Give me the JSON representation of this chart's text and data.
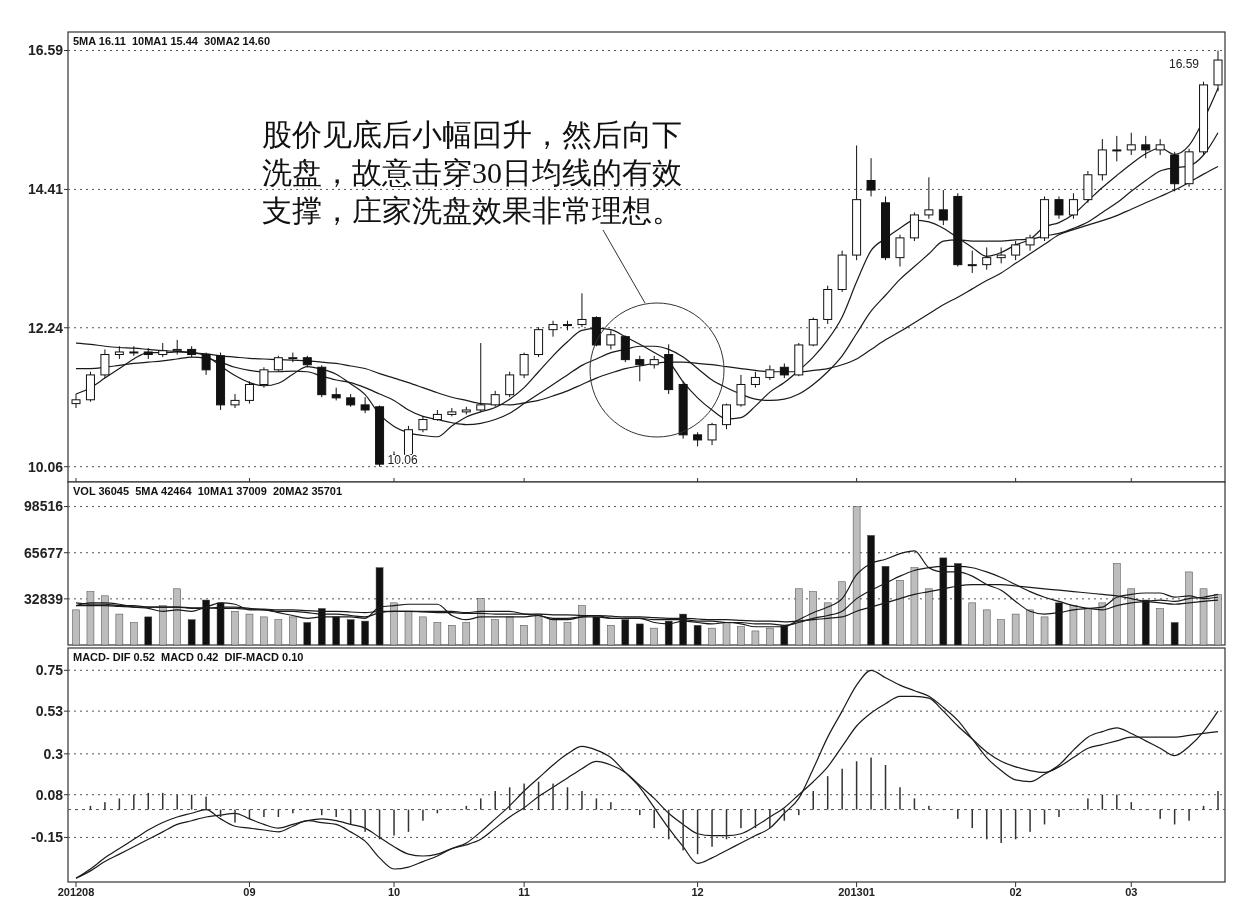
{
  "chart_data": [
    {
      "type": "candlestick",
      "title": "5MA 16.11  10MA1 15.44  30MA2 14.60",
      "categories": [
        "201208",
        null,
        null,
        null,
        null,
        null,
        null,
        null,
        null,
        null,
        null,
        null,
        "09",
        null,
        null,
        null,
        null,
        null,
        null,
        null,
        null,
        null,
        "10",
        null,
        null,
        null,
        null,
        null,
        null,
        null,
        null,
        "11",
        null,
        null,
        null,
        null,
        null,
        null,
        null,
        null,
        null,
        null,
        null,
        "12",
        null,
        null,
        null,
        null,
        null,
        null,
        null,
        null,
        null,
        null,
        "201301",
        null,
        null,
        null,
        null,
        null,
        null,
        null,
        null,
        null,
        null,
        "02",
        null,
        null,
        null,
        null,
        null,
        null,
        null,
        "03",
        null,
        null,
        null,
        null,
        null,
        null
      ],
      "ohlc": [
        [
          11.05,
          11.2,
          10.98,
          11.11
        ],
        [
          11.11,
          11.55,
          11.08,
          11.5
        ],
        [
          11.5,
          11.9,
          11.45,
          11.82
        ],
        [
          11.82,
          11.95,
          11.75,
          11.86
        ],
        [
          11.86,
          11.95,
          11.8,
          11.86
        ],
        [
          11.86,
          11.92,
          11.75,
          11.82
        ],
        [
          11.82,
          12.0,
          11.78,
          11.88
        ],
        [
          11.88,
          12.05,
          11.82,
          11.9
        ],
        [
          11.9,
          11.95,
          11.78,
          11.82
        ],
        [
          11.82,
          11.85,
          11.5,
          11.58
        ],
        [
          11.8,
          11.85,
          10.95,
          11.03
        ],
        [
          11.03,
          11.2,
          10.98,
          11.1
        ],
        [
          11.1,
          11.4,
          11.05,
          11.35
        ],
        [
          11.35,
          11.62,
          11.3,
          11.58
        ],
        [
          11.58,
          11.8,
          11.55,
          11.77
        ],
        [
          11.77,
          11.85,
          11.7,
          11.77
        ],
        [
          11.77,
          11.8,
          11.62,
          11.66
        ],
        [
          11.62,
          11.65,
          11.15,
          11.19
        ],
        [
          11.19,
          11.3,
          11.1,
          11.14
        ],
        [
          11.14,
          11.2,
          11.0,
          11.03
        ],
        [
          11.03,
          11.15,
          10.9,
          10.95
        ],
        [
          11.0,
          11.02,
          10.06,
          10.1
        ],
        [
          10.1,
          10.3,
          10.08,
          10.25
        ],
        [
          10.25,
          10.7,
          10.2,
          10.64
        ],
        [
          10.64,
          10.85,
          10.6,
          10.8
        ],
        [
          10.8,
          10.95,
          10.78,
          10.88
        ],
        [
          10.88,
          10.98,
          10.85,
          10.92
        ],
        [
          10.92,
          11.0,
          10.88,
          10.95
        ],
        [
          10.95,
          12.0,
          10.92,
          11.03
        ],
        [
          11.03,
          11.25,
          11.0,
          11.19
        ],
        [
          11.19,
          11.55,
          11.15,
          11.5
        ],
        [
          11.5,
          11.85,
          11.45,
          11.82
        ],
        [
          11.82,
          12.25,
          11.78,
          12.21
        ],
        [
          12.21,
          12.35,
          12.1,
          12.29
        ],
        [
          12.29,
          12.35,
          12.2,
          12.29
        ],
        [
          12.29,
          12.78,
          12.25,
          12.37
        ],
        [
          12.4,
          12.42,
          11.95,
          11.97
        ],
        [
          11.97,
          12.2,
          11.9,
          12.13
        ],
        [
          12.1,
          12.12,
          11.7,
          11.74
        ],
        [
          11.74,
          11.8,
          11.4,
          11.66
        ],
        [
          11.66,
          11.8,
          11.6,
          11.74
        ],
        [
          11.82,
          11.98,
          11.2,
          11.27
        ],
        [
          11.35,
          11.4,
          10.5,
          10.56
        ],
        [
          10.56,
          10.6,
          10.38,
          10.48
        ],
        [
          10.48,
          10.75,
          10.4,
          10.72
        ],
        [
          10.72,
          11.05,
          10.65,
          11.03
        ],
        [
          11.03,
          11.5,
          11.0,
          11.35
        ],
        [
          11.35,
          11.55,
          11.3,
          11.46
        ],
        [
          11.46,
          11.65,
          11.42,
          11.58
        ],
        [
          11.62,
          11.68,
          11.45,
          11.5
        ],
        [
          11.5,
          12.0,
          11.48,
          11.97
        ],
        [
          11.97,
          12.4,
          11.95,
          12.37
        ],
        [
          12.37,
          12.9,
          12.3,
          12.84
        ],
        [
          12.84,
          13.45,
          12.8,
          13.38
        ],
        [
          13.38,
          15.1,
          13.3,
          14.25
        ],
        [
          14.55,
          14.9,
          14.3,
          14.4
        ],
        [
          14.2,
          14.3,
          13.3,
          13.34
        ],
        [
          13.34,
          13.7,
          13.2,
          13.65
        ],
        [
          13.65,
          14.05,
          13.6,
          14.01
        ],
        [
          14.01,
          14.6,
          13.95,
          14.09
        ],
        [
          14.09,
          14.4,
          13.85,
          13.93
        ],
        [
          14.3,
          14.35,
          13.2,
          13.23
        ],
        [
          13.23,
          13.45,
          13.1,
          13.23
        ],
        [
          13.23,
          13.5,
          13.15,
          13.34
        ],
        [
          13.34,
          13.5,
          13.25,
          13.38
        ],
        [
          13.38,
          13.6,
          13.3,
          13.54
        ],
        [
          13.54,
          13.7,
          13.45,
          13.65
        ],
        [
          13.65,
          14.3,
          13.6,
          14.25
        ],
        [
          14.25,
          14.3,
          13.95,
          14.01
        ],
        [
          14.01,
          14.35,
          13.95,
          14.25
        ],
        [
          14.25,
          14.7,
          14.2,
          14.64
        ],
        [
          14.64,
          15.2,
          14.55,
          15.03
        ],
        [
          15.03,
          15.25,
          14.85,
          15.03
        ],
        [
          15.03,
          15.3,
          14.95,
          15.11
        ],
        [
          15.11,
          15.25,
          14.9,
          15.03
        ],
        [
          15.03,
          15.2,
          14.95,
          15.11
        ],
        [
          14.95,
          15.0,
          14.38,
          14.5
        ],
        [
          14.5,
          15.05,
          14.45,
          15.0
        ],
        [
          15.0,
          16.1,
          14.95,
          16.05
        ],
        [
          16.05,
          16.59,
          15.95,
          16.44
        ]
      ],
      "series": [
        {
          "type": "line",
          "color": "#1a1a1a",
          "values": [
            11.2,
            11.3,
            11.45,
            11.6,
            11.75,
            11.85,
            11.85,
            11.86,
            11.85,
            11.8,
            11.64,
            11.49,
            11.38,
            11.33,
            11.37,
            11.51,
            11.63,
            11.59,
            11.51,
            11.36,
            11.19,
            10.88,
            10.69,
            10.59,
            10.55,
            10.53,
            10.7,
            10.84,
            10.92,
            10.99,
            11.12,
            11.3,
            11.55,
            11.8,
            12.02,
            12.2,
            12.23,
            12.21,
            12.1,
            11.98,
            11.85,
            11.71,
            11.39,
            11.14,
            10.95,
            10.81,
            10.83,
            11.01,
            11.23,
            11.38,
            11.57,
            11.78,
            12.05,
            12.41,
            12.96,
            13.45,
            13.64,
            13.8,
            13.93,
            13.9,
            13.8,
            13.65,
            13.5,
            13.36,
            13.42,
            13.54,
            13.63,
            13.82,
            13.89,
            14.02,
            14.23,
            14.44,
            14.63,
            14.81,
            14.97,
            15.06,
            14.96,
            15.1,
            15.5,
            16.0
          ]
        },
        {
          "type": "line",
          "color": "#1a1a1a",
          "values": [
            11.6,
            11.6,
            11.62,
            11.65,
            11.68,
            11.7,
            11.72,
            11.75,
            11.78,
            11.76,
            11.7,
            11.62,
            11.57,
            11.55,
            11.55,
            11.56,
            11.55,
            11.48,
            11.42,
            11.38,
            11.3,
            11.2,
            11.1,
            10.95,
            10.85,
            10.8,
            10.75,
            10.72,
            10.74,
            10.8,
            10.9,
            11.05,
            11.2,
            11.35,
            11.5,
            11.65,
            11.75,
            11.85,
            11.9,
            11.95,
            11.95,
            11.9,
            11.78,
            11.6,
            11.42,
            11.3,
            11.2,
            11.12,
            11.1,
            11.12,
            11.2,
            11.35,
            11.55,
            11.8,
            12.15,
            12.5,
            12.75,
            13.0,
            13.2,
            13.4,
            13.6,
            13.62,
            13.6,
            13.6,
            13.6,
            13.62,
            13.63,
            13.68,
            13.72,
            13.8,
            13.9,
            14.05,
            14.2,
            14.38,
            14.55,
            14.7,
            14.75,
            14.78,
            14.95,
            15.3
          ]
        },
        {
          "type": "line",
          "color": "#1a1a1a",
          "values": [
            12.0,
            11.98,
            11.95,
            11.93,
            11.92,
            11.9,
            11.88,
            11.87,
            11.85,
            11.83,
            11.8,
            11.78,
            11.76,
            11.75,
            11.74,
            11.73,
            11.72,
            11.7,
            11.68,
            11.64,
            11.6,
            11.52,
            11.45,
            11.38,
            11.3,
            11.22,
            11.15,
            11.1,
            11.05,
            11.04,
            11.03,
            11.06,
            11.1,
            11.17,
            11.25,
            11.35,
            11.45,
            11.53,
            11.6,
            11.64,
            11.68,
            11.7,
            11.7,
            11.68,
            11.66,
            11.63,
            11.6,
            11.57,
            11.55,
            11.55,
            11.55,
            11.57,
            11.6,
            11.66,
            11.75,
            11.9,
            12.05,
            12.18,
            12.32,
            12.46,
            12.6,
            12.72,
            12.85,
            12.98,
            13.1,
            13.25,
            13.4,
            13.55,
            13.7,
            13.78,
            13.85,
            13.92,
            14.0,
            14.1,
            14.2,
            14.3,
            14.4,
            14.52,
            14.65,
            14.77
          ]
        }
      ],
      "ylim": [
        9.82,
        16.88
      ],
      "yticks": [
        10.06,
        12.24,
        14.41,
        16.59
      ],
      "grid": "y",
      "tick_labels": "y",
      "annotations": [
        "股价见底后小幅回升，然后向下洗盘，故意击穿30日均线的有效支撑，庄家洗盘效果非常理想。",
        "10.06",
        "16.59"
      ]
    },
    {
      "type": "bar",
      "title": "VOL 36045  5MA 42464  10MA1 37009  20MA2 35701",
      "categories": [
        "201208",
        null,
        null,
        null,
        null,
        null,
        null,
        null,
        null,
        null,
        null,
        null,
        "09",
        null,
        null,
        null,
        null,
        null,
        null,
        null,
        null,
        null,
        "10",
        null,
        null,
        null,
        null,
        null,
        null,
        null,
        null,
        "11",
        null,
        null,
        null,
        null,
        null,
        null,
        null,
        null,
        null,
        null,
        null,
        "12",
        null,
        null,
        null,
        null,
        null,
        null,
        null,
        null,
        null,
        null,
        "201301",
        null,
        null,
        null,
        null,
        null,
        null,
        null,
        null,
        null,
        null,
        "02",
        null,
        null,
        null,
        null,
        null,
        null,
        null,
        "03",
        null,
        null,
        null,
        null,
        null,
        null
      ],
      "series": [
        {
          "type": "bar",
          "colors": [
            "#bdbdbd",
            "#bdbdbd",
            "#bdbdbd",
            "#bdbdbd",
            "#bdbdbd",
            "#111111",
            "#bdbdbd",
            "#bdbdbd",
            "#111111",
            "#111111",
            "#111111",
            "#bdbdbd",
            "#bdbdbd",
            "#bdbdbd",
            "#bdbdbd",
            "#bdbdbd",
            "#111111",
            "#111111",
            "#111111",
            "#111111",
            "#111111",
            "#111111",
            "#bdbdbd",
            "#bdbdbd",
            "#bdbdbd",
            "#bdbdbd",
            "#bdbdbd",
            "#bdbdbd",
            "#bdbdbd",
            "#bdbdbd",
            "#bdbdbd",
            "#bdbdbd",
            "#bdbdbd",
            "#bdbdbd",
            "#bdbdbd",
            "#bdbdbd",
            "#111111",
            "#bdbdbd",
            "#111111",
            "#111111",
            "#bdbdbd",
            "#111111",
            "#111111",
            "#111111",
            "#bdbdbd",
            "#bdbdbd",
            "#bdbdbd",
            "#bdbdbd",
            "#bdbdbd",
            "#111111",
            "#bdbdbd",
            "#bdbdbd",
            "#bdbdbd",
            "#bdbdbd",
            "#bdbdbd",
            "#111111",
            "#111111",
            "#bdbdbd",
            "#bdbdbd",
            "#bdbdbd",
            "#111111",
            "#111111",
            "#bdbdbd",
            "#bdbdbd",
            "#bdbdbd",
            "#bdbdbd",
            "#bdbdbd",
            "#bdbdbd",
            "#111111",
            "#bdbdbd",
            "#bdbdbd",
            "#bdbdbd",
            "#bdbdbd",
            "#bdbdbd",
            "#111111",
            "#bdbdbd",
            "#111111",
            "#bdbdbd",
            "#bdbdbd",
            "#bdbdbd"
          ],
          "values": [
            25000,
            38000,
            35000,
            22000,
            16000,
            20000,
            28000,
            40000,
            18000,
            32000,
            30000,
            24000,
            22000,
            20000,
            18000,
            20000,
            16000,
            26000,
            20000,
            18000,
            17000,
            55000,
            30000,
            24000,
            20000,
            16000,
            14000,
            16000,
            33000,
            18000,
            20000,
            14000,
            22000,
            18000,
            16000,
            28000,
            20000,
            14000,
            18000,
            15000,
            12000,
            17000,
            22000,
            14000,
            12000,
            16000,
            13000,
            10000,
            12000,
            14000,
            40000,
            38000,
            30000,
            45000,
            98500,
            78000,
            56000,
            46000,
            55000,
            40000,
            62000,
            58000,
            30000,
            25000,
            18000,
            22000,
            25000,
            20000,
            30000,
            28000,
            26000,
            30000,
            58000,
            40000,
            32000,
            26000,
            16000,
            52000,
            40000,
            36000
          ]
        },
        {
          "type": "line",
          "color": "#1a1a1a",
          "values": [
            28000,
            30000,
            30000,
            29000,
            27000,
            26000,
            24000,
            25000,
            24000,
            27000,
            30000,
            29000,
            25000,
            25000,
            23000,
            21000,
            19000,
            20000,
            20000,
            20000,
            19000,
            27000,
            28000,
            29000,
            29000,
            29000,
            21000,
            18000,
            20000,
            20000,
            20000,
            20000,
            21000,
            18000,
            18000,
            20000,
            21000,
            19000,
            19000,
            19000,
            16000,
            15000,
            17000,
            16000,
            15000,
            16000,
            15000,
            13000,
            13000,
            13000,
            18000,
            23000,
            27000,
            33000,
            50000,
            58000,
            61000,
            65000,
            67000,
            55000,
            52000,
            52000,
            49000,
            43000,
            39000,
            31000,
            24000,
            22000,
            23000,
            25000,
            26000,
            27000,
            34000,
            36000,
            37000,
            37000,
            34000,
            35000,
            33000,
            34000
          ]
        },
        {
          "type": "line",
          "color": "#1a1a1a",
          "values": [
            30000,
            29000,
            29000,
            28000,
            28000,
            27000,
            27000,
            27000,
            26000,
            26000,
            27000,
            27000,
            26000,
            25000,
            24000,
            24000,
            23000,
            22000,
            22000,
            21000,
            20000,
            23000,
            24000,
            24000,
            24000,
            24000,
            24000,
            23000,
            24000,
            24000,
            24000,
            22000,
            21000,
            19000,
            19000,
            20000,
            20000,
            19000,
            19000,
            19000,
            18000,
            18000,
            18000,
            17000,
            17000,
            16000,
            16000,
            15000,
            15000,
            14000,
            16000,
            19000,
            21000,
            24000,
            33000,
            39000,
            44000,
            49000,
            53000,
            55000,
            56000,
            56000,
            55000,
            52000,
            48000,
            43000,
            38000,
            34000,
            31000,
            28000,
            26000,
            25000,
            28000,
            30000,
            31000,
            32000,
            31000,
            33000,
            34000,
            36000
          ]
        },
        {
          "type": "line",
          "color": "#1a1a1a",
          "values": [
            28000,
            28000,
            28000,
            27500,
            27000,
            27000,
            27000,
            27000,
            26500,
            26500,
            26000,
            26000,
            25500,
            25500,
            25000,
            25000,
            24500,
            24000,
            24000,
            23500,
            23000,
            24000,
            24000,
            24000,
            23500,
            23000,
            23000,
            22500,
            22500,
            22000,
            22000,
            22000,
            22000,
            21500,
            21500,
            21000,
            21000,
            20500,
            20000,
            20000,
            19500,
            19000,
            19000,
            18500,
            18000,
            18000,
            17500,
            17000,
            17000,
            16500,
            17000,
            18000,
            19000,
            20000,
            24000,
            27000,
            30000,
            33000,
            36000,
            38000,
            40000,
            42000,
            43000,
            43000,
            43000,
            42000,
            41000,
            40000,
            39000,
            38000,
            37000,
            36000,
            35000,
            33000,
            31000,
            30000,
            29000,
            30000,
            31000,
            32000
          ]
        }
      ],
      "ylim": [
        0,
        116000
      ],
      "yticks": [
        32839,
        65677,
        98516
      ],
      "grid": "y",
      "tick_labels": "y"
    },
    {
      "type": "line",
      "title": "MACD- DIF 0.52  MACD 0.42  DIF-MACD 0.10",
      "categories": [
        "201208",
        null,
        null,
        null,
        null,
        null,
        null,
        null,
        null,
        null,
        null,
        null,
        "09",
        null,
        null,
        null,
        null,
        null,
        null,
        null,
        null,
        null,
        "10",
        null,
        null,
        null,
        null,
        null,
        null,
        null,
        null,
        "11",
        null,
        null,
        null,
        null,
        null,
        null,
        null,
        null,
        null,
        null,
        null,
        "12",
        null,
        null,
        null,
        null,
        null,
        null,
        null,
        null,
        null,
        null,
        "201301",
        null,
        null,
        null,
        null,
        null,
        null,
        null,
        null,
        null,
        null,
        "02",
        null,
        null,
        null,
        null,
        null,
        null,
        null,
        "03",
        null,
        null,
        null,
        null,
        null,
        null
      ],
      "series": [
        {
          "type": "bar",
          "color": "#333333",
          "values": [
            0,
            0.02,
            0.04,
            0.06,
            0.08,
            0.09,
            0.09,
            0.08,
            0.08,
            0.07,
            -0.04,
            -0.07,
            -0.05,
            -0.04,
            -0.04,
            -0.02,
            0,
            -0.03,
            -0.04,
            -0.08,
            -0.12,
            -0.16,
            -0.14,
            -0.12,
            -0.06,
            -0.02,
            0,
            0.02,
            0.06,
            0.1,
            0.12,
            0.14,
            0.15,
            0.14,
            0.12,
            0.1,
            0.06,
            0.04,
            0,
            -0.03,
            -0.1,
            -0.16,
            -0.22,
            -0.24,
            -0.2,
            -0.16,
            -0.1,
            -0.1,
            -0.1,
            -0.06,
            -0.03,
            0.1,
            0.18,
            0.22,
            0.26,
            0.28,
            0.24,
            0.12,
            0.06,
            0.02,
            0,
            -0.05,
            -0.1,
            -0.16,
            -0.18,
            -0.16,
            -0.12,
            -0.08,
            -0.04,
            0,
            0.06,
            0.08,
            0.08,
            0.04,
            0,
            -0.05,
            -0.08,
            -0.06,
            0.02,
            0.1
          ]
        },
        {
          "type": "line",
          "color": "#1a1a1a",
          "values": [
            -0.37,
            -0.32,
            -0.26,
            -0.21,
            -0.16,
            -0.11,
            -0.07,
            -0.04,
            -0.02,
            0,
            -0.05,
            -0.09,
            -0.1,
            -0.11,
            -0.12,
            -0.09,
            -0.06,
            -0.07,
            -0.08,
            -0.12,
            -0.17,
            -0.26,
            -0.32,
            -0.31,
            -0.28,
            -0.25,
            -0.21,
            -0.18,
            -0.12,
            -0.05,
            0.02,
            0.1,
            0.17,
            0.24,
            0.3,
            0.34,
            0.32,
            0.28,
            0.2,
            0.12,
            0.01,
            -0.1,
            -0.2,
            -0.29,
            -0.26,
            -0.22,
            -0.18,
            -0.14,
            -0.1,
            -0.02,
            0.06,
            0.22,
            0.39,
            0.53,
            0.67,
            0.75,
            0.71,
            0.67,
            0.64,
            0.61,
            0.55,
            0.48,
            0.38,
            0.28,
            0.21,
            0.16,
            0.15,
            0.19,
            0.24,
            0.32,
            0.39,
            0.42,
            0.44,
            0.41,
            0.37,
            0.33,
            0.29,
            0.34,
            0.42,
            0.53
          ]
        },
        {
          "type": "line",
          "color": "#1a1a1a",
          "values": [
            -0.37,
            -0.33,
            -0.28,
            -0.24,
            -0.2,
            -0.16,
            -0.12,
            -0.08,
            -0.06,
            -0.04,
            -0.03,
            -0.02,
            -0.05,
            -0.08,
            -0.1,
            -0.08,
            -0.06,
            -0.05,
            -0.06,
            -0.08,
            -0.1,
            -0.15,
            -0.2,
            -0.24,
            -0.25,
            -0.24,
            -0.21,
            -0.19,
            -0.16,
            -0.1,
            -0.04,
            0.01,
            0.07,
            0.12,
            0.17,
            0.22,
            0.26,
            0.24,
            0.2,
            0.13,
            0.06,
            -0.02,
            -0.08,
            -0.13,
            -0.14,
            -0.14,
            -0.13,
            -0.09,
            -0.04,
            0.01,
            0.08,
            0.15,
            0.23,
            0.34,
            0.45,
            0.52,
            0.57,
            0.61,
            0.61,
            0.6,
            0.53,
            0.45,
            0.38,
            0.31,
            0.26,
            0.23,
            0.21,
            0.2,
            0.23,
            0.28,
            0.33,
            0.35,
            0.37,
            0.39,
            0.39,
            0.39,
            0.39,
            0.4,
            0.41,
            0.42
          ]
        }
      ],
      "ylim": [
        -0.39,
        0.87
      ],
      "yticks": [
        -0.15,
        0.08,
        0.3,
        0.53,
        0.75
      ],
      "grid": "y",
      "ref_lines": [
        {
          "axis": "y",
          "value": 0,
          "line_style": "dashed"
        }
      ]
    }
  ]
}
